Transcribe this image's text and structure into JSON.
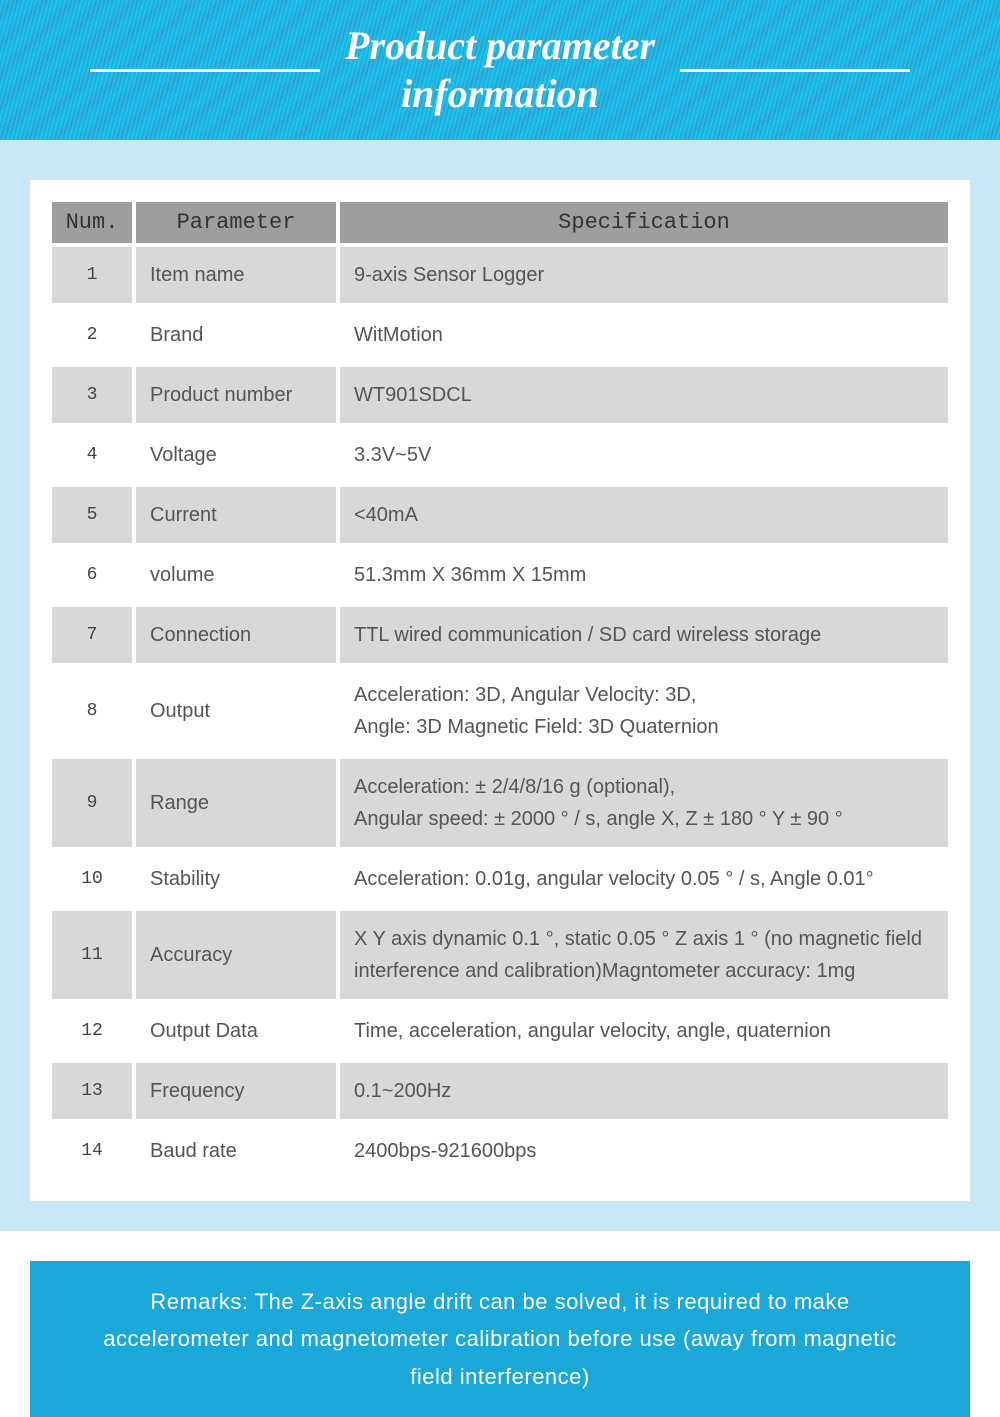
{
  "colors": {
    "banner_gradient_a": "#0db8e8",
    "banner_gradient_b": "#1ba8d8",
    "content_bg": "#c8e8f8",
    "card_bg": "#ffffff",
    "header_row_bg": "#9e9e9e",
    "row_odd_bg": "#d8d8d8",
    "row_even_bg": "#ffffff",
    "text_color": "#555555",
    "title_color": "#ffffff",
    "remarks_bg": "#1aa8d8"
  },
  "header": {
    "title_line1": "Product parameter",
    "title_line2": "information"
  },
  "table": {
    "columns": {
      "num": "Num.",
      "parameter": "Parameter",
      "specification": "Specification"
    },
    "rows": [
      {
        "num": "1",
        "parameter": "Item name",
        "specification": "9-axis Sensor Logger"
      },
      {
        "num": "2",
        "parameter": "Brand",
        "specification": "WitMotion"
      },
      {
        "num": "3",
        "parameter": "Product number",
        "specification": "WT901SDCL"
      },
      {
        "num": "4",
        "parameter": "Voltage",
        "specification": "3.3V~5V"
      },
      {
        "num": "5",
        "parameter": "Current",
        "specification": "<40mA"
      },
      {
        "num": "6",
        "parameter": "volume",
        "specification": "51.3mm X 36mm X 15mm"
      },
      {
        "num": "7",
        "parameter": "Connection",
        "specification": "TTL wired communication / SD card wireless storage"
      },
      {
        "num": "8",
        "parameter": "Output",
        "specification": "Acceleration: 3D, Angular Velocity: 3D,\nAngle: 3D Magnetic Field: 3D Quaternion"
      },
      {
        "num": "9",
        "parameter": "Range",
        "specification": "Acceleration: ± 2/4/8/16 g (optional),\nAngular speed: ± 2000 ° / s, angle X, Z ± 180 ° Y ± 90 °"
      },
      {
        "num": "10",
        "parameter": "Stability",
        "specification": "Acceleration: 0.01g, angular velocity 0.05 ° / s, Angle  0.01°"
      },
      {
        "num": "11",
        "parameter": "Accuracy",
        "specification": "X Y axis dynamic 0.1 °, static 0.05 ° Z axis 1 ° (no magnetic field interference and calibration)Magntometer accuracy: 1mg"
      },
      {
        "num": "12",
        "parameter": "Output Data",
        "specification": "Time, acceleration, angular velocity, angle, quaternion"
      },
      {
        "num": "13",
        "parameter": "Frequency",
        "specification": "0.1~200Hz"
      },
      {
        "num": "14",
        "parameter": "Baud rate",
        "specification": "2400bps-921600bps"
      }
    ]
  },
  "remarks": {
    "text": "Remarks: The Z-axis angle drift can be solved, it is required to make accelerometer and magnetometer calibration before use (away from magnetic field interference)"
  }
}
